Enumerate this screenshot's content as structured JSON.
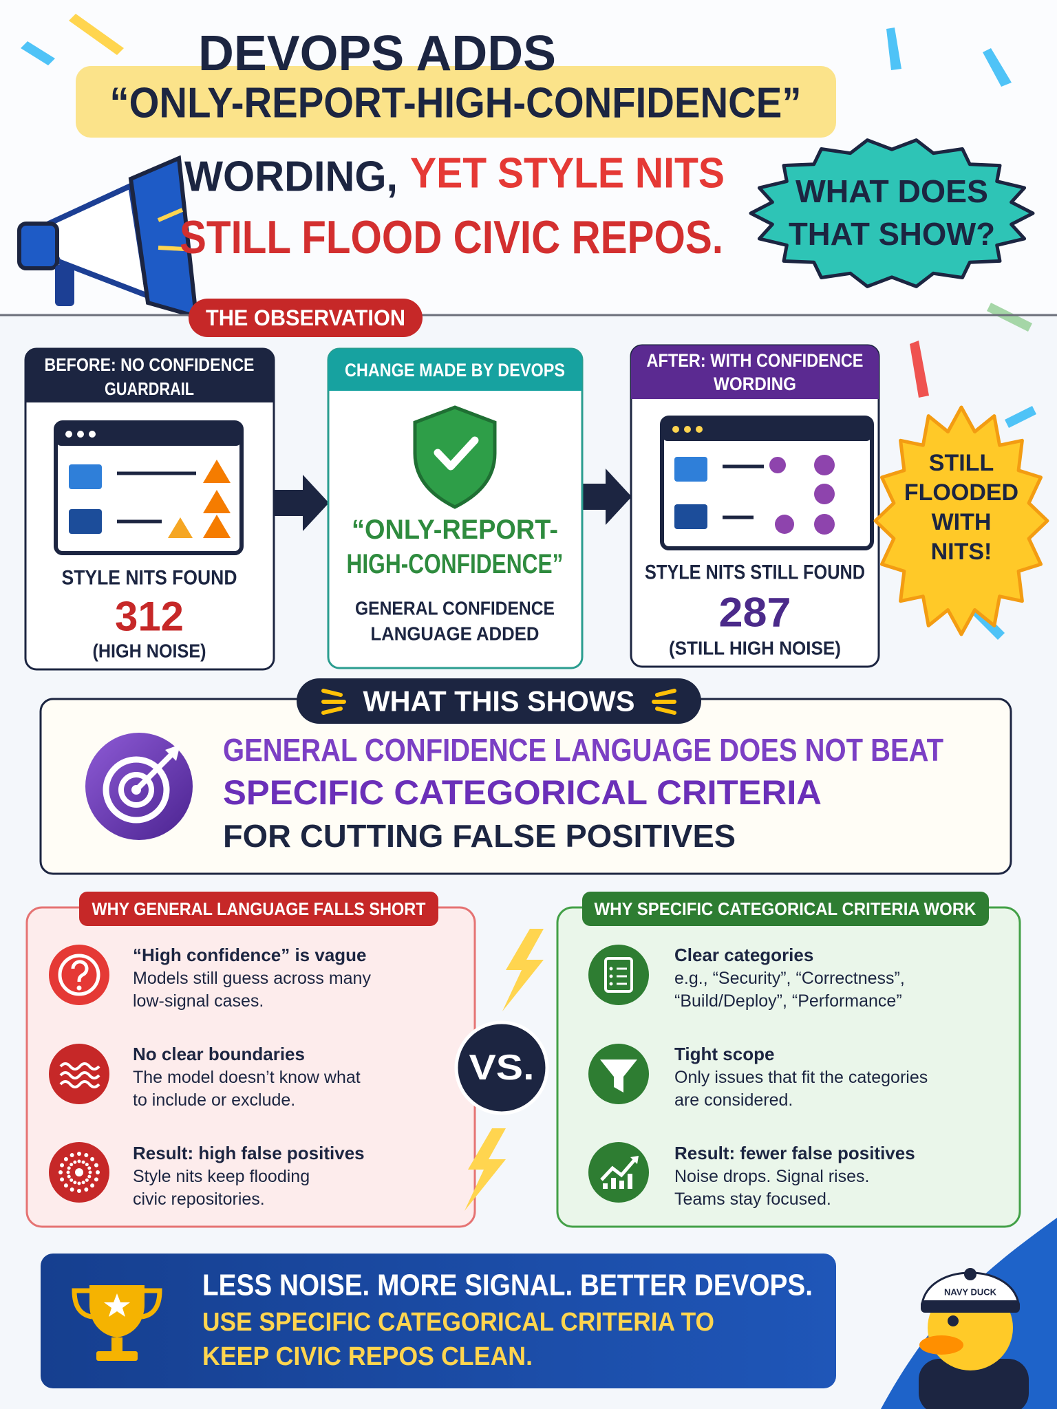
{
  "header": {
    "title_line1": "DEVOPS ADDS",
    "title_highlight": "“ONLY-REPORT-HIGH-CONFIDENCE”",
    "title_line3_a": "WORDING,",
    "title_line3_b": "YET STYLE NITS",
    "title_line4": "STILL FLOOD CIVIC REPOS.",
    "badge": [
      "WHAT DOES",
      "THAT SHOW?"
    ]
  },
  "observation": {
    "label": "THE OBSERVATION",
    "cards": [
      {
        "header": [
          "BEFORE: NO CONFIDENCE",
          "GUARDRAIL"
        ],
        "caption": "STYLE NITS FOUND",
        "value": 312,
        "note": "(HIGH NOISE)"
      },
      {
        "header": [
          "CHANGE MADE BY DEVOPS"
        ],
        "quote": [
          "“ONLY-REPORT-",
          "HIGH-CONFIDENCE”"
        ],
        "caption": [
          "GENERAL CONFIDENCE",
          "LANGUAGE ADDED"
        ]
      },
      {
        "header": [
          "AFTER: WITH CONFIDENCE",
          "WORDING"
        ],
        "caption": "STYLE NITS STILL FOUND",
        "value": 287,
        "note": "(STILL HIGH NOISE)"
      }
    ],
    "burst": [
      "STILL",
      "FLOODED",
      "WITH",
      "NITS!"
    ]
  },
  "insight": {
    "label": "WHAT THIS SHOWS",
    "lines": [
      "GENERAL CONFIDENCE LANGUAGE DOES NOT BEAT",
      "SPECIFIC CATEGORICAL CRITERIA",
      "FOR CUTTING FALSE POSITIVES"
    ]
  },
  "comparison": {
    "left": {
      "title": "WHY GENERAL LANGUAGE FALLS SHORT",
      "items": [
        {
          "title": "“High confidence” is vague",
          "lines": [
            "Models still guess across many",
            "low-signal cases."
          ]
        },
        {
          "title": "No clear boundaries",
          "lines": [
            "The model doesn’t know what",
            "to include or exclude."
          ]
        },
        {
          "title": "Result: high false positives",
          "lines": [
            "Style nits keep flooding",
            "civic repositories."
          ]
        }
      ]
    },
    "vs": "VS.",
    "right": {
      "title": "WHY SPECIFIC CATEGORICAL CRITERIA WORK",
      "items": [
        {
          "title": "Clear categories",
          "lines": [
            "e.g., “Security”, “Correctness”,",
            "“Build/Deploy”, “Performance”"
          ]
        },
        {
          "title": "Tight scope",
          "lines": [
            "Only issues that fit the categories",
            "are considered."
          ]
        },
        {
          "title": "Result: fewer false positives",
          "lines": [
            "Noise drops. Signal rises.",
            "Teams stay focused."
          ]
        }
      ]
    }
  },
  "footer": {
    "lines": [
      "LESS NOISE. MORE SIGNAL. BETTER DEVOPS.",
      "USE SPECIFIC CATEGORICAL CRITERIA TO",
      "KEEP CIVIC REPOS CLEAN."
    ],
    "mascot": "NAVY DUCK"
  }
}
